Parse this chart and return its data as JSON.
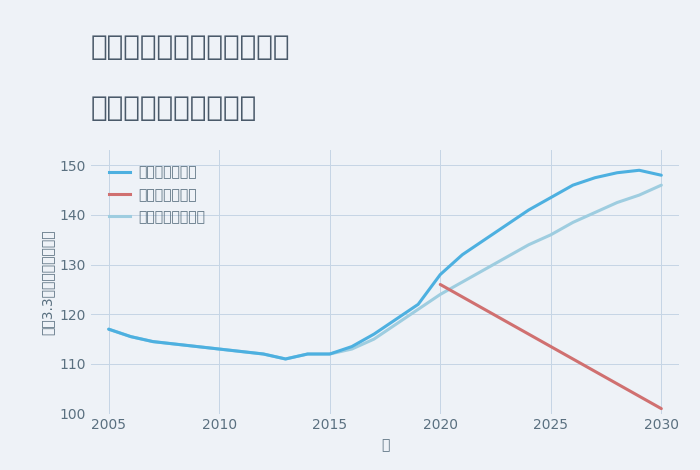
{
  "title_line1": "兵庫県西宮市津門宝津町の",
  "title_line2": "中古戸建ての価格推移",
  "xlabel": "年",
  "ylabel": "坪（3.3㎡）単価（万円）",
  "background_color": "#eef2f7",
  "plot_bg_color": "#eef2f7",
  "ylim": [
    100,
    153
  ],
  "xlim": [
    2004.2,
    2030.8
  ],
  "yticks": [
    100,
    110,
    120,
    130,
    140,
    150
  ],
  "xticks": [
    2005,
    2010,
    2015,
    2020,
    2025,
    2030
  ],
  "grid_color": "#c5d5e5",
  "good_scenario": {
    "label": "グッドシナリオ",
    "color": "#4db0e0",
    "linewidth": 2.2,
    "years": [
      2005,
      2006,
      2007,
      2008,
      2009,
      2010,
      2011,
      2012,
      2013,
      2014,
      2015,
      2016,
      2017,
      2018,
      2019,
      2020,
      2021,
      2022,
      2023,
      2024,
      2025,
      2026,
      2027,
      2028,
      2029,
      2030
    ],
    "values": [
      117,
      115.5,
      114.5,
      114,
      113.5,
      113,
      112.5,
      112,
      111,
      112,
      112,
      113.5,
      116,
      119,
      122,
      128,
      132,
      135,
      138,
      141,
      143.5,
      146,
      147.5,
      148.5,
      149,
      148
    ]
  },
  "bad_scenario": {
    "label": "バッドシナリオ",
    "color": "#d07070",
    "linewidth": 2.2,
    "years": [
      2020,
      2021,
      2022,
      2023,
      2024,
      2025,
      2026,
      2027,
      2028,
      2029,
      2030
    ],
    "values": [
      126,
      123.5,
      121,
      118.5,
      116,
      113.5,
      111,
      108.5,
      106,
      103.5,
      101
    ]
  },
  "normal_scenario": {
    "label": "ノーマルシナリオ",
    "color": "#9ecde0",
    "linewidth": 2.2,
    "years": [
      2005,
      2006,
      2007,
      2008,
      2009,
      2010,
      2011,
      2012,
      2013,
      2014,
      2015,
      2016,
      2017,
      2018,
      2019,
      2020,
      2021,
      2022,
      2023,
      2024,
      2025,
      2026,
      2027,
      2028,
      2029,
      2030
    ],
    "values": [
      117,
      115.5,
      114.5,
      114,
      113.5,
      113,
      112.5,
      112,
      111,
      112,
      112,
      113,
      115,
      118,
      121,
      124,
      126.5,
      129,
      131.5,
      134,
      136,
      138.5,
      140.5,
      142.5,
      144,
      146
    ]
  },
  "title_color": "#4a5a6a",
  "axis_color": "#5a7080",
  "tick_color": "#5a7080",
  "title_fontsize": 20,
  "label_fontsize": 10,
  "tick_fontsize": 10,
  "legend_fontsize": 10
}
